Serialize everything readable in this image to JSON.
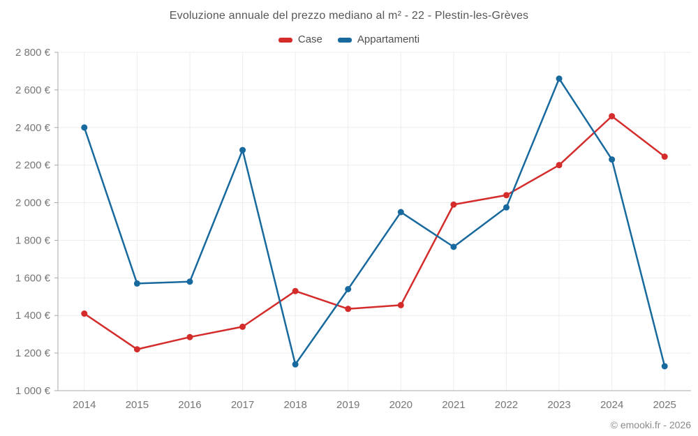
{
  "title": "Evoluzione annuale del prezzo mediano al m² - 22 - Plestin-les-Grèves",
  "copyright": "© emooki.fr - 2026",
  "colors": {
    "case_red": "#d42b2b",
    "appartamenti_blue": "#17699e",
    "grid": "#ededed",
    "axis": "#a8a8a8",
    "tick_text": "#767676",
    "title_text": "#565656"
  },
  "chart_data": {
    "type": "line",
    "title": "Evoluzione annuale del prezzo mediano al m² - 22 - Plestin-les-Grèves",
    "categories": [
      "2014",
      "2015",
      "2016",
      "2017",
      "2018",
      "2019",
      "2020",
      "2021",
      "2022",
      "2023",
      "2024",
      "2025"
    ],
    "series": [
      {
        "name": "Case",
        "color": "#d42b2b",
        "values": [
          1410,
          1220,
          1285,
          1340,
          1530,
          1435,
          1455,
          1990,
          2040,
          2200,
          2460,
          2245
        ]
      },
      {
        "name": "Appartamenti",
        "color": "#17699e",
        "values": [
          2400,
          1570,
          1580,
          2280,
          1140,
          1540,
          1950,
          1765,
          1975,
          2660,
          2230,
          1130
        ]
      }
    ],
    "xlabel": "",
    "ylabel": "",
    "ylim": [
      1000,
      2800
    ],
    "ytick_step": 200,
    "ytick_suffix": " €",
    "grid": true,
    "legend_position": "top"
  }
}
